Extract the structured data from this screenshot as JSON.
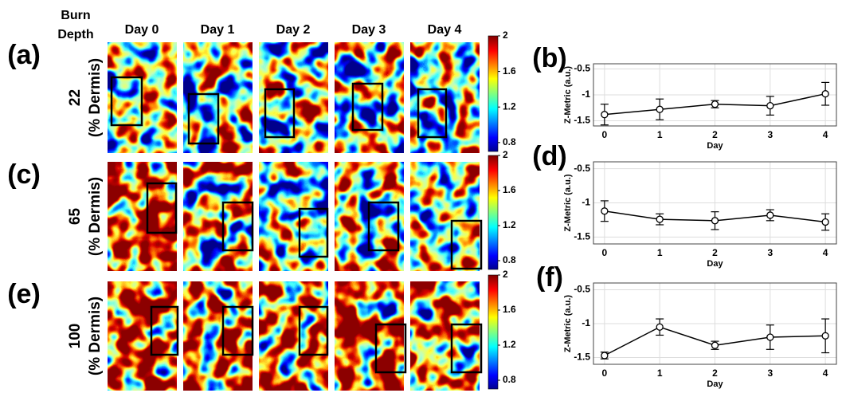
{
  "figure": {
    "depth_header": [
      "Burn",
      "Depth"
    ],
    "columns": [
      "Day 0",
      "Day 1",
      "Day 2",
      "Day 3",
      "Day 4"
    ],
    "rows": [
      {
        "label": "(a)",
        "depth": "22",
        "unit": "(% Dermis)"
      },
      {
        "label": "(c)",
        "depth": "65",
        "unit": "(% Dermis)"
      },
      {
        "label": "(e)",
        "depth": "100",
        "unit": "(% Dermis)"
      }
    ],
    "colorbar": {
      "lim": [
        0.7,
        2
      ],
      "ticks": [
        2,
        1.6,
        1.2,
        0.8
      ]
    }
  },
  "chart_data": [
    {
      "type": "line",
      "label": "(b)",
      "x_label": "Day",
      "y_label": "Z-Metric (a.u.)",
      "x": [
        0,
        1,
        2,
        3,
        4
      ],
      "xlim": [
        -0.2,
        4.2
      ],
      "xticks": [
        0,
        1,
        2,
        3,
        4
      ],
      "ylim": [
        -1.6,
        -0.4
      ],
      "yticks": [
        -0.5,
        -1,
        -1.5
      ],
      "grid": true,
      "series": [
        {
          "color": "#000000",
          "values": [
            -1.38,
            -1.28,
            -1.18,
            -1.21,
            -0.98
          ],
          "errors": [
            0.2,
            0.2,
            0.07,
            0.18,
            0.22
          ]
        }
      ]
    },
    {
      "type": "line",
      "label": "(d)",
      "x_label": "Day",
      "y_label": "Z-Metric (a.u.)",
      "x": [
        0,
        1,
        2,
        3,
        4
      ],
      "xlim": [
        -0.2,
        4.2
      ],
      "xticks": [
        0,
        1,
        2,
        3,
        4
      ],
      "ylim": [
        -1.6,
        -0.4
      ],
      "yticks": [
        -0.5,
        -1,
        -1.5
      ],
      "grid": true,
      "series": [
        {
          "color": "#000000",
          "values": [
            -1.12,
            -1.24,
            -1.26,
            -1.18,
            -1.28
          ],
          "errors": [
            0.15,
            0.08,
            0.13,
            0.08,
            0.12
          ]
        }
      ]
    },
    {
      "type": "line",
      "label": "(f)",
      "x_label": "Day",
      "y_label": "Z-Metric (a.u.)",
      "x": [
        0,
        1,
        2,
        3,
        4
      ],
      "xlim": [
        -0.2,
        4.2
      ],
      "xticks": [
        0,
        1,
        2,
        3,
        4
      ],
      "ylim": [
        -1.6,
        -0.4
      ],
      "yticks": [
        -0.5,
        -1,
        -1.5
      ],
      "grid": true,
      "series": [
        {
          "color": "#000000",
          "values": [
            -1.47,
            -1.05,
            -1.32,
            -1.2,
            -1.18
          ],
          "errors": [
            0.05,
            0.12,
            0.06,
            0.18,
            0.25
          ]
        }
      ]
    }
  ]
}
